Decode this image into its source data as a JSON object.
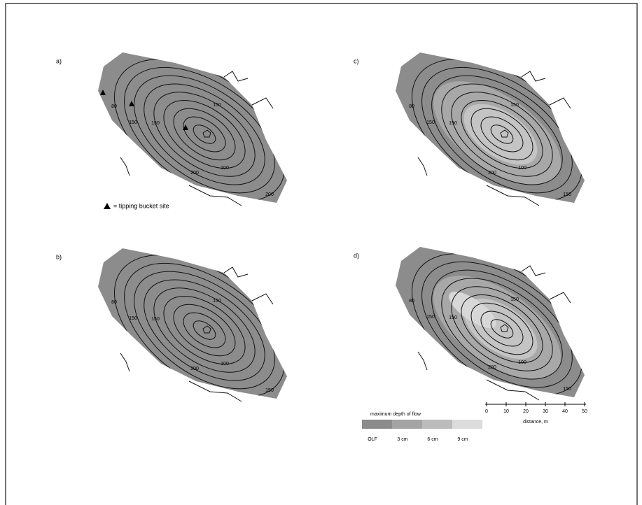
{
  "panels": [
    {
      "label": "a)",
      "contour_labels": [
        "80",
        "150",
        "150",
        "150",
        "200",
        "100",
        "200"
      ]
    },
    {
      "label": "b)",
      "contour_labels": [
        "80",
        "150",
        "150",
        "150",
        "200",
        "100",
        "150"
      ]
    },
    {
      "label": "c)",
      "contour_labels": [
        "80",
        "150",
        "150",
        "150",
        "200",
        "100",
        "150"
      ]
    },
    {
      "label": "d)",
      "contour_labels": [
        "80",
        "150",
        "150",
        "150",
        "200",
        "100",
        "150"
      ]
    }
  ],
  "legend": {
    "marker_text": "= tipping bucket site",
    "depth_title": "maximum depth of flow",
    "depth_classes": [
      "OLF",
      "3 cm",
      "6 cm",
      "9 cm"
    ]
  },
  "scale": {
    "ticks": [
      "0",
      "10",
      "20",
      "30",
      "40",
      "50"
    ],
    "label": "distance, m"
  }
}
